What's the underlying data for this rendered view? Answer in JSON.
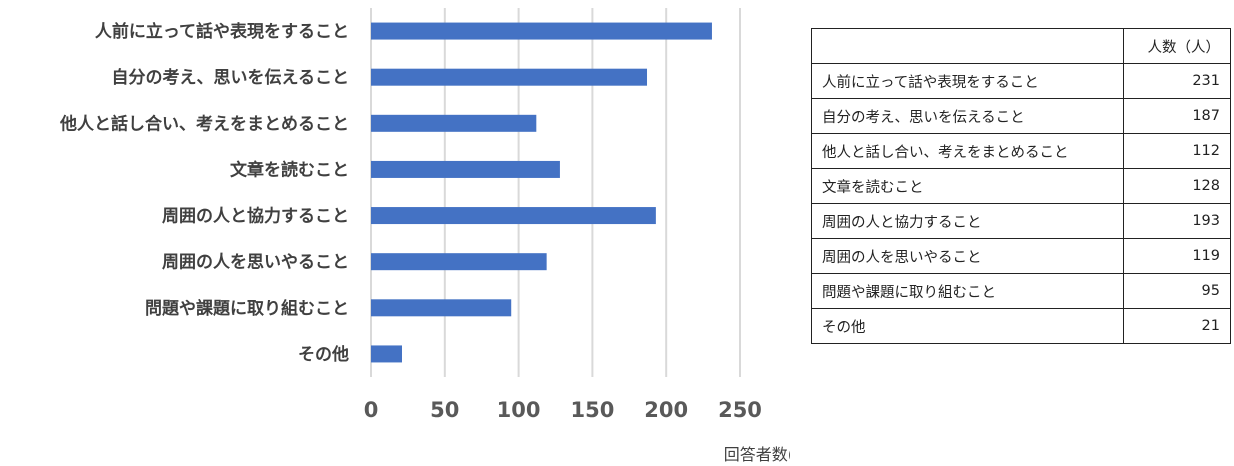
{
  "chart_data": {
    "type": "bar",
    "orientation": "horizontal",
    "categories": [
      "人前に立って話や表現をすること",
      "自分の考え、思いを伝えること",
      "他人と話し合い、考えをまとめること",
      "文章を読むこと",
      "周囲の人と協力すること",
      "周囲の人を思いやること",
      "問題や課題に取り組むこと",
      "その他"
    ],
    "values": [
      231,
      187,
      112,
      128,
      193,
      119,
      95,
      21
    ],
    "xlabel": "回答者数(人)",
    "ylabel": "",
    "xlim": [
      0,
      250
    ],
    "xticks": [
      "0",
      "50",
      "100",
      "150",
      "200",
      "250"
    ],
    "grid": "vertical",
    "bar_color": "#4472c4"
  },
  "table": {
    "header": [
      "",
      "人数（人）"
    ],
    "rows": [
      [
        "人前に立って話や表現をすること",
        "231"
      ],
      [
        "自分の考え、思いを伝えること",
        "187"
      ],
      [
        "他人と話し合い、考えをまとめること",
        "112"
      ],
      [
        "文章を読むこと",
        "128"
      ],
      [
        "周囲の人と協力すること",
        "193"
      ],
      [
        "周囲の人を思いやること",
        "119"
      ],
      [
        "問題や課題に取り組むこと",
        "95"
      ],
      [
        "その他",
        "21"
      ]
    ]
  }
}
